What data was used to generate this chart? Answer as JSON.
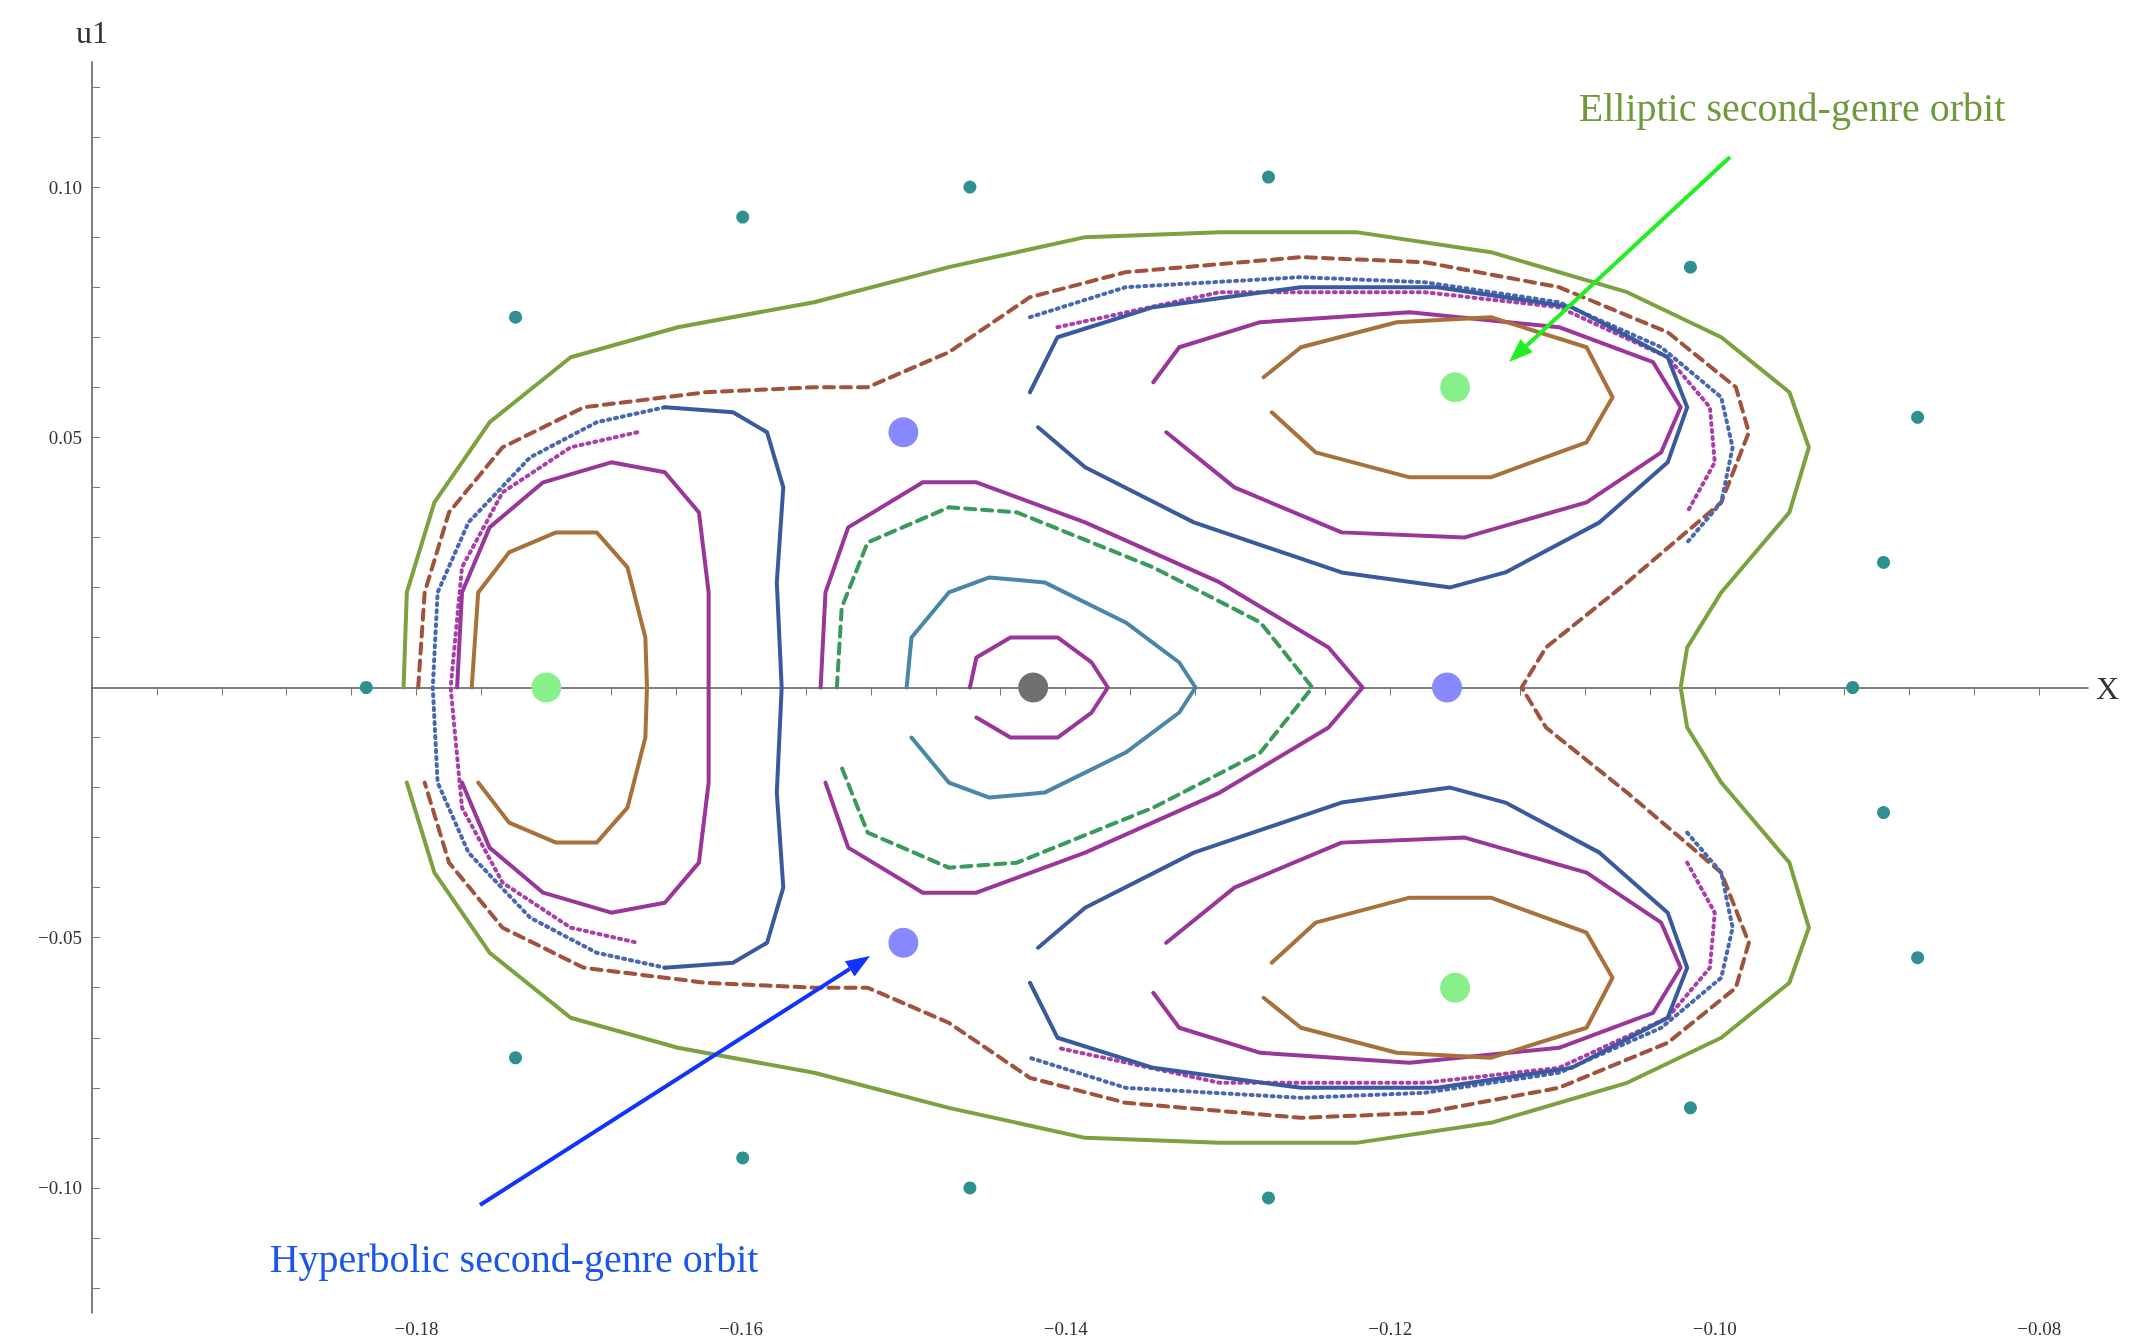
{
  "chart_data": {
    "type": "line",
    "xlabel": "X",
    "ylabel": "u1",
    "xlim": [
      -0.2,
      -0.077
    ],
    "ylim": [
      -0.125,
      0.125
    ],
    "xticks": [
      {
        "value": -0.196,
        "label": null
      },
      {
        "value": -0.192,
        "label": null
      },
      {
        "value": -0.188,
        "label": null
      },
      {
        "value": -0.184,
        "label": null
      },
      {
        "value": -0.18,
        "label": "−0.18"
      },
      {
        "value": -0.176,
        "label": null
      },
      {
        "value": -0.172,
        "label": null
      },
      {
        "value": -0.168,
        "label": null
      },
      {
        "value": -0.164,
        "label": null
      },
      {
        "value": -0.16,
        "label": "−0.16"
      },
      {
        "value": -0.156,
        "label": null
      },
      {
        "value": -0.152,
        "label": null
      },
      {
        "value": -0.148,
        "label": null
      },
      {
        "value": -0.144,
        "label": null
      },
      {
        "value": -0.14,
        "label": "−0.14"
      },
      {
        "value": -0.136,
        "label": null
      },
      {
        "value": -0.132,
        "label": null
      },
      {
        "value": -0.128,
        "label": null
      },
      {
        "value": -0.124,
        "label": null
      },
      {
        "value": -0.12,
        "label": "−0.12"
      },
      {
        "value": -0.116,
        "label": null
      },
      {
        "value": -0.112,
        "label": null
      },
      {
        "value": -0.108,
        "label": null
      },
      {
        "value": -0.104,
        "label": null
      },
      {
        "value": -0.1,
        "label": "−0.10"
      },
      {
        "value": -0.096,
        "label": null
      },
      {
        "value": -0.092,
        "label": null
      },
      {
        "value": -0.088,
        "label": null
      },
      {
        "value": -0.084,
        "label": null
      },
      {
        "value": -0.08,
        "label": "−0.08"
      }
    ],
    "yticks": [
      {
        "value": -0.12,
        "label": null
      },
      {
        "value": -0.11,
        "label": null
      },
      {
        "value": -0.1,
        "label": "−0.10"
      },
      {
        "value": -0.09,
        "label": null
      },
      {
        "value": -0.08,
        "label": null
      },
      {
        "value": -0.07,
        "label": null
      },
      {
        "value": -0.06,
        "label": null
      },
      {
        "value": -0.05,
        "label": "−0.05"
      },
      {
        "value": -0.04,
        "label": null
      },
      {
        "value": -0.03,
        "label": null
      },
      {
        "value": -0.02,
        "label": null
      },
      {
        "value": -0.01,
        "label": null
      },
      {
        "value": 0.01,
        "label": null
      },
      {
        "value": 0.02,
        "label": null
      },
      {
        "value": 0.03,
        "label": null
      },
      {
        "value": 0.04,
        "label": null
      },
      {
        "value": 0.05,
        "label": "0.05"
      },
      {
        "value": 0.06,
        "label": null
      },
      {
        "value": 0.07,
        "label": null
      },
      {
        "value": 0.08,
        "label": null
      },
      {
        "value": 0.09,
        "label": null
      },
      {
        "value": 0.1,
        "label": "0.10"
      },
      {
        "value": 0.11,
        "label": null
      },
      {
        "value": 0.12,
        "label": null
      }
    ],
    "marker": "none",
    "series": [
      {
        "color": "#7aa23e",
        "line_style": "solid",
        "x": [
          -0.1808,
          -0.1806,
          -0.1789,
          -0.1755,
          -0.1705,
          -0.1639,
          -0.1555,
          -0.1472,
          -0.1388,
          -0.1305,
          -0.1221,
          -0.1138,
          -0.1054,
          -0.0996,
          -0.0954,
          -0.0942,
          -0.0954,
          -0.0996,
          -0.1017,
          -0.1021,
          -0.1017,
          -0.0996,
          -0.0954,
          -0.0942,
          -0.0954,
          -0.0996,
          -0.1054,
          -0.1138,
          -0.1221,
          -0.1305,
          -0.1388,
          -0.1472,
          -0.1555,
          -0.1639,
          -0.1705,
          -0.1755,
          -0.1789,
          -0.1806
        ],
        "values": [
          0,
          0.019,
          0.037,
          0.053,
          0.066,
          0.072,
          0.077,
          0.084,
          0.09,
          0.091,
          0.091,
          0.087,
          0.079,
          0.07,
          0.059,
          0.048,
          0.035,
          0.019,
          0.008,
          0,
          -0.008,
          -0.019,
          -0.035,
          -0.048,
          -0.059,
          -0.07,
          -0.079,
          -0.087,
          -0.091,
          -0.091,
          -0.09,
          -0.084,
          -0.077,
          -0.072,
          -0.066,
          -0.053,
          -0.037,
          -0.019
        ]
      },
      {
        "color": "#a0523c",
        "line_style": "dashed",
        "x": [
          -0.1799,
          -0.1795,
          -0.178,
          -0.1747,
          -0.1697,
          -0.1622,
          -0.1555,
          -0.1522,
          -0.1472,
          -0.1422,
          -0.1363,
          -0.1255,
          -0.1179,
          -0.1096,
          -0.1029,
          -0.0987,
          -0.0979,
          -0.0996,
          -0.1054,
          -0.1104,
          -0.1119,
          -0.1104,
          -0.1054,
          -0.0996,
          -0.0979,
          -0.0987,
          -0.1029,
          -0.1096,
          -0.1179,
          -0.1255,
          -0.1363,
          -0.1422,
          -0.1472,
          -0.1522,
          -0.1555,
          -0.1622,
          -0.1697,
          -0.1747,
          -0.178,
          -0.1795
        ],
        "values": [
          0,
          0.019,
          0.035,
          0.048,
          0.056,
          0.059,
          0.06,
          0.06,
          0.067,
          0.078,
          0.083,
          0.086,
          0.085,
          0.08,
          0.071,
          0.06,
          0.051,
          0.037,
          0.021,
          0.008,
          0,
          -0.008,
          -0.021,
          -0.037,
          -0.051,
          -0.06,
          -0.071,
          -0.08,
          -0.085,
          -0.086,
          -0.083,
          -0.078,
          -0.067,
          -0.06,
          -0.06,
          -0.059,
          -0.056,
          -0.048,
          -0.035,
          -0.019
        ]
      },
      {
        "color": "#4a68b0",
        "line_style": "dotted",
        "x": [
          -0.1647,
          -0.1689,
          -0.173,
          -0.1768,
          -0.1787,
          -0.179,
          -0.1787,
          -0.1768,
          -0.173,
          -0.1689,
          -0.1647
        ],
        "values": [
          0.056,
          0.053,
          0.046,
          0.033,
          0.019,
          0,
          -0.019,
          -0.033,
          -0.046,
          -0.053,
          -0.056
        ]
      },
      {
        "color": "#4a68b0",
        "line_style": "dotted",
        "x": [
          -0.1422,
          -0.1363,
          -0.1255,
          -0.1179,
          -0.1096,
          -0.1033,
          -0.0996,
          -0.0989,
          -0.0996,
          -0.1017
        ],
        "values": [
          0.074,
          0.08,
          0.082,
          0.081,
          0.077,
          0.068,
          0.058,
          0.048,
          0.037,
          0.029
        ]
      },
      {
        "color": "#4a68b0",
        "line_style": "dotted",
        "x": [
          -0.1017,
          -0.0996,
          -0.0989,
          -0.0996,
          -0.1033,
          -0.1096,
          -0.1179,
          -0.1255,
          -0.1363,
          -0.1422
        ],
        "values": [
          -0.029,
          -0.037,
          -0.048,
          -0.058,
          -0.068,
          -0.077,
          -0.081,
          -0.082,
          -0.08,
          -0.074
        ]
      },
      {
        "color": "#aa3fa8",
        "line_style": "dotted",
        "x": [
          -0.1664,
          -0.1705,
          -0.1747,
          -0.1772,
          -0.1779,
          -0.1772,
          -0.1747,
          -0.1705,
          -0.1664
        ],
        "values": [
          0.051,
          0.048,
          0.039,
          0.024,
          0,
          -0.024,
          -0.039,
          -0.048,
          -0.051
        ]
      },
      {
        "color": "#aa3fa8",
        "line_style": "dotted",
        "x": [
          -0.1405,
          -0.1305,
          -0.1179,
          -0.1096,
          -0.1029,
          -0.1003,
          -0.1,
          -0.1017
        ],
        "values": [
          0.072,
          0.079,
          0.079,
          0.076,
          0.066,
          0.056,
          0.045,
          0.035
        ]
      },
      {
        "color": "#aa3fa8",
        "line_style": "dotted",
        "x": [
          -0.1017,
          -0.1,
          -0.1003,
          -0.1029,
          -0.1096,
          -0.1179,
          -0.1305,
          -0.1405
        ],
        "values": [
          -0.035,
          -0.045,
          -0.056,
          -0.066,
          -0.076,
          -0.079,
          -0.079,
          -0.072
        ]
      },
      {
        "color": "#3a5aa0",
        "line_style": "solid",
        "x": [
          -0.1647,
          -0.1605,
          -0.1584,
          -0.1574,
          -0.1578,
          -0.1575,
          -0.1578,
          -0.1574,
          -0.1584,
          -0.1605,
          -0.1647
        ],
        "values": [
          0.056,
          0.055,
          0.051,
          0.04,
          0.021,
          0,
          -0.021,
          -0.04,
          -0.051,
          -0.055,
          -0.056
        ]
      },
      {
        "color": "#3a5aa0",
        "line_style": "solid",
        "x": [
          -0.1422,
          -0.1405,
          -0.1346,
          -0.1255,
          -0.1171,
          -0.1088,
          -0.1029,
          -0.1017,
          -0.1029,
          -0.1071,
          -0.1129,
          -0.1163,
          -0.123,
          -0.1321,
          -0.1388,
          -0.1417
        ],
        "values": [
          0.059,
          0.07,
          0.076,
          0.08,
          0.08,
          0.076,
          0.066,
          0.056,
          0.045,
          0.033,
          0.023,
          0.02,
          0.023,
          0.033,
          0.044,
          0.052
        ]
      },
      {
        "color": "#3a5aa0",
        "line_style": "solid",
        "x": [
          -0.1422,
          -0.1405,
          -0.1346,
          -0.1255,
          -0.1171,
          -0.1088,
          -0.1029,
          -0.1017,
          -0.1029,
          -0.1071,
          -0.1129,
          -0.1163,
          -0.123,
          -0.1321,
          -0.1388,
          -0.1417
        ],
        "values": [
          -0.059,
          -0.07,
          -0.076,
          -0.08,
          -0.08,
          -0.076,
          -0.066,
          -0.056,
          -0.045,
          -0.033,
          -0.023,
          -0.02,
          -0.023,
          -0.033,
          -0.044,
          -0.052
        ]
      },
      {
        "color": "#9a3599",
        "line_style": "solid",
        "x": [
          -0.1775,
          -0.1772,
          -0.1755,
          -0.1722,
          -0.168,
          -0.1647,
          -0.1626,
          -0.162,
          -0.162,
          -0.162,
          -0.1626,
          -0.1647,
          -0.168,
          -0.1722,
          -0.1755,
          -0.1772
        ],
        "values": [
          0,
          0.019,
          0.032,
          0.041,
          0.045,
          0.043,
          0.035,
          0.019,
          0,
          -0.019,
          -0.035,
          -0.043,
          -0.045,
          -0.041,
          -0.032,
          -0.019
        ]
      },
      {
        "color": "#9a3599",
        "line_style": "solid",
        "x": [
          -0.1346,
          -0.133,
          -0.128,
          -0.1188,
          -0.1096,
          -0.1038,
          -0.1021,
          -0.1033,
          -0.1079,
          -0.1154,
          -0.123,
          -0.1296,
          -0.1338
        ],
        "values": [
          0.061,
          0.068,
          0.073,
          0.075,
          0.072,
          0.065,
          0.056,
          0.047,
          0.037,
          0.03,
          0.031,
          0.04,
          0.051
        ]
      },
      {
        "color": "#9a3599",
        "line_style": "solid",
        "x": [
          -0.1346,
          -0.133,
          -0.128,
          -0.1188,
          -0.1096,
          -0.1038,
          -0.1021,
          -0.1033,
          -0.1079,
          -0.1154,
          -0.123,
          -0.1296,
          -0.1338
        ],
        "values": [
          -0.061,
          -0.068,
          -0.073,
          -0.075,
          -0.072,
          -0.065,
          -0.056,
          -0.047,
          -0.037,
          -0.03,
          -0.031,
          -0.04,
          -0.051
        ]
      },
      {
        "color": "#9a3599",
        "line_style": "solid",
        "x": [
          -0.1551,
          -0.1548,
          -0.1534,
          -0.1488,
          -0.1455,
          -0.1388,
          -0.1305,
          -0.1238,
          -0.1217,
          -0.1238,
          -0.1305,
          -0.1388,
          -0.1455,
          -0.1488,
          -0.1534,
          -0.1548
        ],
        "values": [
          0,
          0.019,
          0.032,
          0.041,
          0.041,
          0.033,
          0.021,
          0.008,
          0,
          -0.008,
          -0.021,
          -0.033,
          -0.041,
          -0.041,
          -0.032,
          -0.019
        ]
      },
      {
        "color": "#9a3599",
        "line_style": "solid",
        "x": [
          -0.1459,
          -0.1455,
          -0.1434,
          -0.1405,
          -0.1384,
          -0.1374,
          -0.1384,
          -0.1405,
          -0.1434,
          -0.1455
        ],
        "values": [
          0,
          0.006,
          0.01,
          0.01,
          0.005,
          0,
          -0.005,
          -0.01,
          -0.01,
          -0.006
        ]
      },
      {
        "color": "#a8703a",
        "line_style": "solid",
        "x": [
          -0.1766,
          -0.1762,
          -0.1743,
          -0.1714,
          -0.1689,
          -0.167,
          -0.1659,
          -0.1658,
          -0.1659,
          -0.167,
          -0.1689,
          -0.1714,
          -0.1743,
          -0.1762
        ],
        "values": [
          0,
          0.019,
          0.027,
          0.031,
          0.031,
          0.024,
          0.01,
          0,
          -0.01,
          -0.024,
          -0.031,
          -0.031,
          -0.027,
          -0.019
        ]
      },
      {
        "color": "#a8703a",
        "line_style": "solid",
        "x": [
          -0.1278,
          -0.1255,
          -0.1196,
          -0.1138,
          -0.1079,
          -0.1063,
          -0.1079,
          -0.1138,
          -0.1188,
          -0.1246,
          -0.1273
        ],
        "values": [
          0.062,
          0.068,
          0.073,
          0.074,
          0.068,
          0.058,
          0.049,
          0.042,
          0.042,
          0.047,
          0.055
        ]
      },
      {
        "color": "#a8703a",
        "line_style": "solid",
        "x": [
          -0.1278,
          -0.1255,
          -0.1196,
          -0.1138,
          -0.1079,
          -0.1063,
          -0.1079,
          -0.1138,
          -0.1188,
          -0.1246,
          -0.1273
        ],
        "values": [
          -0.062,
          -0.068,
          -0.073,
          -0.074,
          -0.068,
          -0.058,
          -0.049,
          -0.042,
          -0.042,
          -0.047,
          -0.055
        ]
      },
      {
        "color": "#3a9a5a",
        "line_style": "dashed",
        "x": [
          -0.1541,
          -0.1538,
          -0.1522,
          -0.1472,
          -0.143,
          -0.1346,
          -0.128,
          -0.1248,
          -0.128,
          -0.1346,
          -0.143,
          -0.1472,
          -0.1522,
          -0.1538
        ],
        "values": [
          0,
          0.016,
          0.029,
          0.036,
          0.035,
          0.024,
          0.013,
          0,
          -0.013,
          -0.024,
          -0.035,
          -0.036,
          -0.029,
          -0.016
        ]
      },
      {
        "color": "#4a86a8",
        "line_style": "solid",
        "x": [
          -0.1498,
          -0.1495,
          -0.1472,
          -0.1447,
          -0.1413,
          -0.1363,
          -0.133,
          -0.132,
          -0.133,
          -0.1363,
          -0.1413,
          -0.1447,
          -0.1472,
          -0.1495
        ],
        "values": [
          0,
          0.01,
          0.019,
          0.022,
          0.021,
          0.013,
          0.005,
          0,
          -0.005,
          -0.013,
          -0.021,
          -0.022,
          -0.019,
          -0.01
        ]
      },
      {
        "type": "scatter",
        "marker": "circle",
        "color": "#2e9090",
        "x": [
          -0.1831,
          -0.1739,
          -0.1599,
          -0.1459,
          -0.1275,
          -0.1015,
          -0.0875,
          -0.0896,
          -0.0915,
          -0.0896,
          -0.0875,
          -0.1015,
          -0.1275,
          -0.1459,
          -0.1599,
          -0.1739
        ],
        "values": [
          0,
          0.074,
          0.094,
          0.1,
          0.102,
          0.084,
          0.054,
          0.025,
          0,
          -0.025,
          -0.054,
          -0.084,
          -0.102,
          -0.1,
          -0.094,
          -0.074
        ]
      },
      {
        "type": "scatter",
        "marker": "circle",
        "color": "#88f088",
        "x": [
          -0.116,
          -0.172,
          -0.116
        ],
        "values": [
          0.06,
          0,
          -0.06
        ]
      },
      {
        "type": "scatter",
        "marker": "circle",
        "color": "#8888ff",
        "x": [
          -0.15,
          -0.15,
          -0.1165
        ],
        "values": [
          0.051,
          -0.051,
          0
        ]
      },
      {
        "type": "scatter",
        "marker": "circle",
        "color": "#707070",
        "x": [
          -0.142
        ],
        "values": [
          0
        ]
      }
    ],
    "annotations": [
      "Elliptic second-genre orbit",
      "Hyperbolic second-genre orbit"
    ]
  }
}
